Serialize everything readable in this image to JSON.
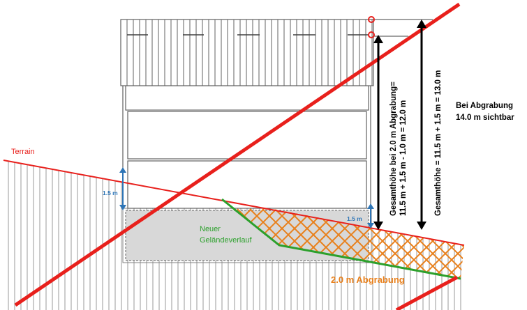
{
  "labels": {
    "terrain": "Terrain",
    "new_terrain_line1": "Neuer",
    "new_terrain_line2": "Geländeverlauf",
    "excavation": "2.0 m Abgrabung",
    "offset_left": "1.5 m",
    "offset_right": "1.5 m",
    "height_excavated_line1": "Gesamthöhe bei 2.0 m Abgrabung=",
    "height_excavated_line2": "11.5 m + 1.5 m - 1.0 m = 12.0 m",
    "height_total": "Gesamthöhe = 11.5 m + 1.5 m = 13.0 m",
    "note_line1": "Bei Abgrabung",
    "note_line2": "14.0 m sichtbar"
  },
  "colors": {
    "terrain": "#e8201c",
    "new_terrain": "#2ca02c",
    "excavation": "#e8801c",
    "dimension_blue": "#2e75b6",
    "building": "#606060",
    "hatch": "#9a9a9a",
    "basement_fill": "#d8d8d8"
  }
}
